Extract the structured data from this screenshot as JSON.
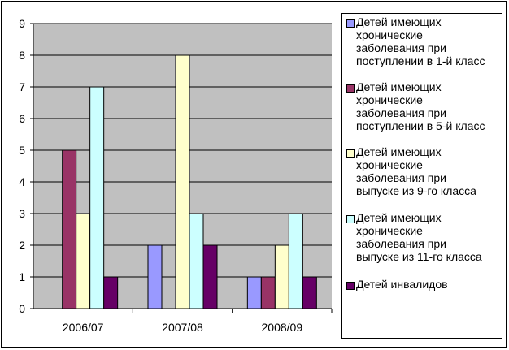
{
  "chart_data": {
    "type": "bar",
    "categories": [
      "2006/07",
      "2007/08",
      "2008/09"
    ],
    "ylim": [
      0,
      9
    ],
    "yticks": [
      0,
      1,
      2,
      3,
      4,
      5,
      6,
      7,
      8,
      9
    ],
    "grid": true,
    "legend_position": "right",
    "series": [
      {
        "name": "Детей имеющих\nхронические\nзаболевания при\nпоступлении в 1-й класс",
        "color": "#9999ff",
        "values": [
          0,
          2,
          1
        ]
      },
      {
        "name": "Детей имеющих\nхронические\nзаболевания при\nпоступлении в 5-й класс",
        "color": "#993366",
        "values": [
          5,
          0,
          1
        ]
      },
      {
        "name": "Детей имеющих\nхронические\nзаболевания при\nвыпуске из 9-го класса",
        "color": "#ffffcc",
        "values": [
          3,
          8,
          2
        ]
      },
      {
        "name": "Детей имеющих\nхронические\nзаболевания при\nвыпуске из 11-го класса",
        "color": "#ccffff",
        "values": [
          7,
          3,
          3
        ]
      },
      {
        "name": "Детей инвалидов",
        "color": "#660066",
        "values": [
          1,
          2,
          1
        ]
      }
    ]
  }
}
